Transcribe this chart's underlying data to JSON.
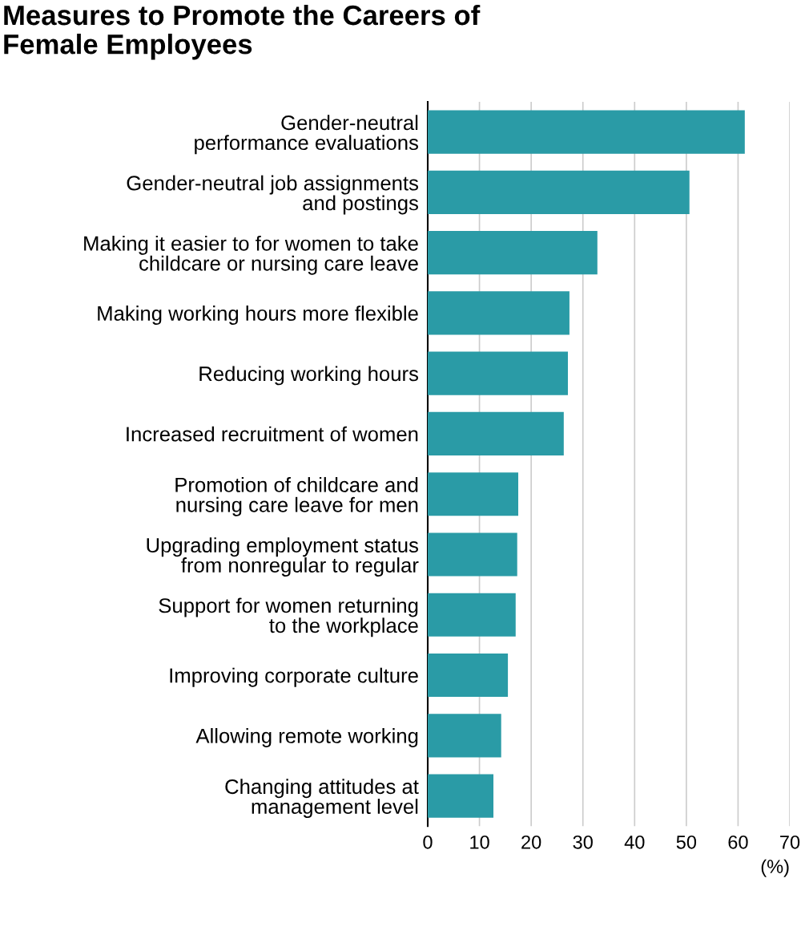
{
  "chart_data": {
    "type": "bar",
    "orientation": "horizontal",
    "title": "Measures to Promote the Careers of\nFemale Employees",
    "xlabel": "(%)",
    "categories": [
      "Gender-neutral\nperformance evaluations",
      "Gender-neutral job assignments\nand postings",
      "Making it easier to for women to take\nchildcare or nursing care leave",
      "Making working hours more flexible",
      "Reducing working hours",
      "Increased recruitment of women",
      "Promotion of childcare and\nnursing care leave for men",
      "Upgrading employment status\nfrom nonregular to regular",
      "Support for women returning\nto the workplace",
      "Improving corporate culture",
      "Allowing remote working",
      "Changing attitudes at\nmanagement level"
    ],
    "values": [
      61.3,
      50.6,
      32.8,
      27.4,
      27.1,
      26.3,
      17.5,
      17.3,
      17.0,
      15.5,
      14.2,
      12.7
    ],
    "color": "#2a9ba6",
    "xlim": [
      0,
      70
    ],
    "xticks": [
      0,
      10,
      20,
      30,
      40,
      50,
      60,
      70
    ],
    "grid": "x",
    "legend": false
  }
}
